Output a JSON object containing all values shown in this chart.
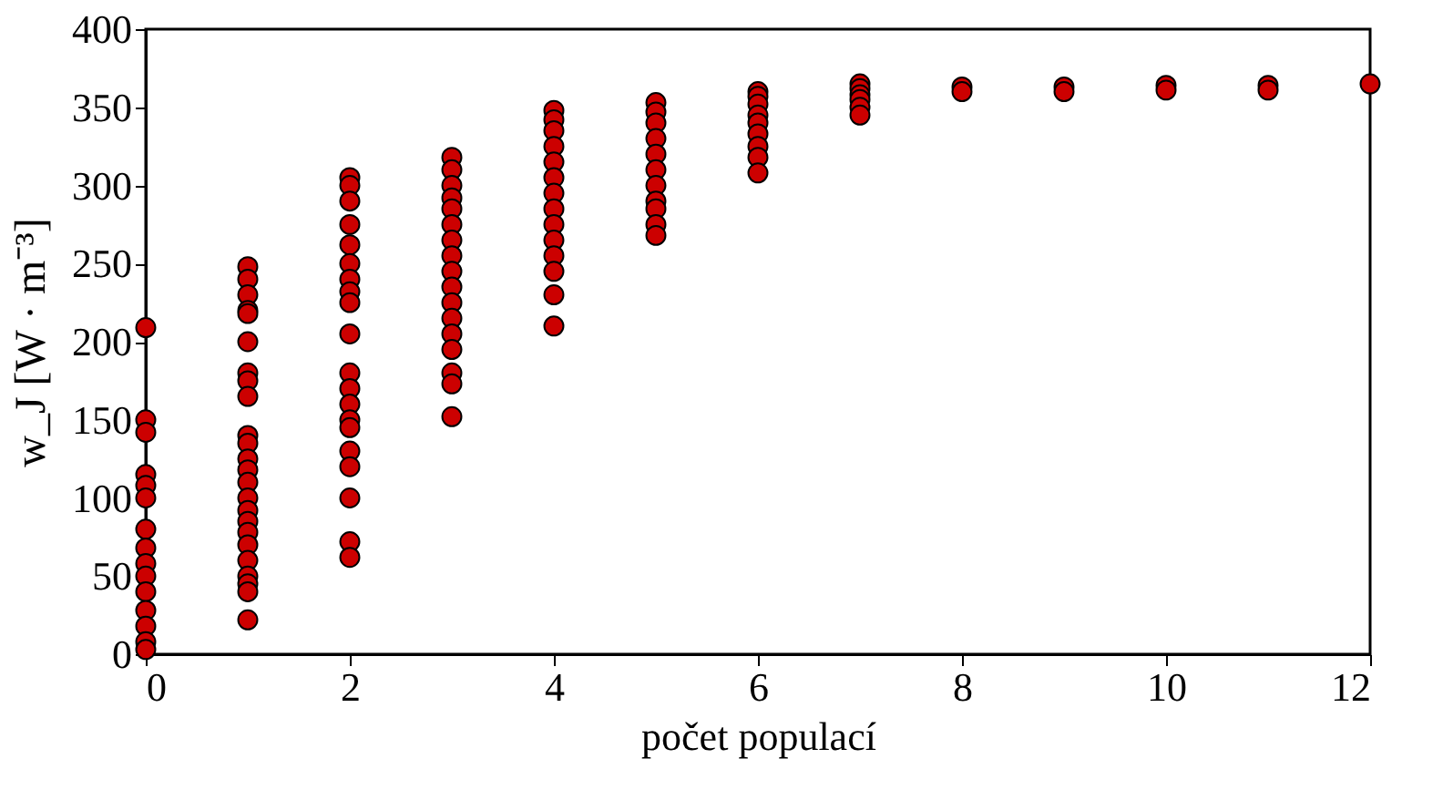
{
  "chart_data": {
    "type": "scatter",
    "xlabel": "počet populací",
    "ylabel": "w_J [W · m⁻³]",
    "xlim": [
      0,
      12
    ],
    "ylim": [
      0,
      400
    ],
    "xticks": [
      0,
      2,
      4,
      6,
      8,
      10,
      12
    ],
    "yticks": [
      0,
      50,
      100,
      150,
      200,
      250,
      300,
      350,
      400
    ],
    "grid": false,
    "legend": false,
    "marker": "circle",
    "series": [
      {
        "color": "#cc0000",
        "x": [
          0,
          0,
          0,
          0,
          0,
          0,
          0,
          0,
          0,
          0,
          0,
          0,
          0,
          0,
          0,
          1,
          1,
          1,
          1,
          1,
          1,
          1,
          1,
          1,
          1,
          1,
          1,
          1,
          1,
          1,
          1,
          1,
          1,
          1,
          1,
          1,
          1,
          1,
          1,
          2,
          2,
          2,
          2,
          2,
          2,
          2,
          2,
          2,
          2,
          2,
          2,
          2,
          2,
          2,
          2,
          2,
          2,
          2,
          2,
          3,
          3,
          3,
          3,
          3,
          3,
          3,
          3,
          3,
          3,
          3,
          3,
          3,
          3,
          3,
          3,
          3,
          4,
          4,
          4,
          4,
          4,
          4,
          4,
          4,
          4,
          4,
          4,
          4,
          4,
          4,
          5,
          5,
          5,
          5,
          5,
          5,
          5,
          5,
          5,
          5,
          5,
          6,
          6,
          6,
          6,
          6,
          6,
          6,
          6,
          6,
          7,
          7,
          7,
          7,
          7,
          7,
          8,
          8,
          9,
          9,
          10,
          10,
          11,
          11,
          12
        ],
        "values": [
          209,
          150,
          142,
          115,
          108,
          100,
          80,
          68,
          58,
          50,
          40,
          28,
          18,
          8,
          3,
          248,
          240,
          230,
          220,
          218,
          200,
          180,
          175,
          165,
          140,
          135,
          125,
          118,
          110,
          100,
          92,
          85,
          78,
          70,
          60,
          50,
          45,
          40,
          22,
          305,
          300,
          290,
          275,
          262,
          250,
          240,
          232,
          225,
          205,
          180,
          170,
          160,
          150,
          145,
          130,
          120,
          100,
          72,
          62,
          318,
          310,
          300,
          292,
          285,
          275,
          265,
          255,
          245,
          235,
          225,
          215,
          205,
          195,
          180,
          173,
          152,
          348,
          342,
          335,
          325,
          315,
          305,
          295,
          285,
          275,
          265,
          255,
          245,
          230,
          210,
          353,
          347,
          340,
          330,
          320,
          310,
          300,
          290,
          285,
          275,
          268,
          360,
          357,
          352,
          345,
          340,
          333,
          325,
          318,
          308,
          365,
          362,
          358,
          355,
          350,
          345,
          363,
          360,
          363,
          360,
          364,
          361,
          364,
          361,
          365
        ]
      }
    ]
  }
}
